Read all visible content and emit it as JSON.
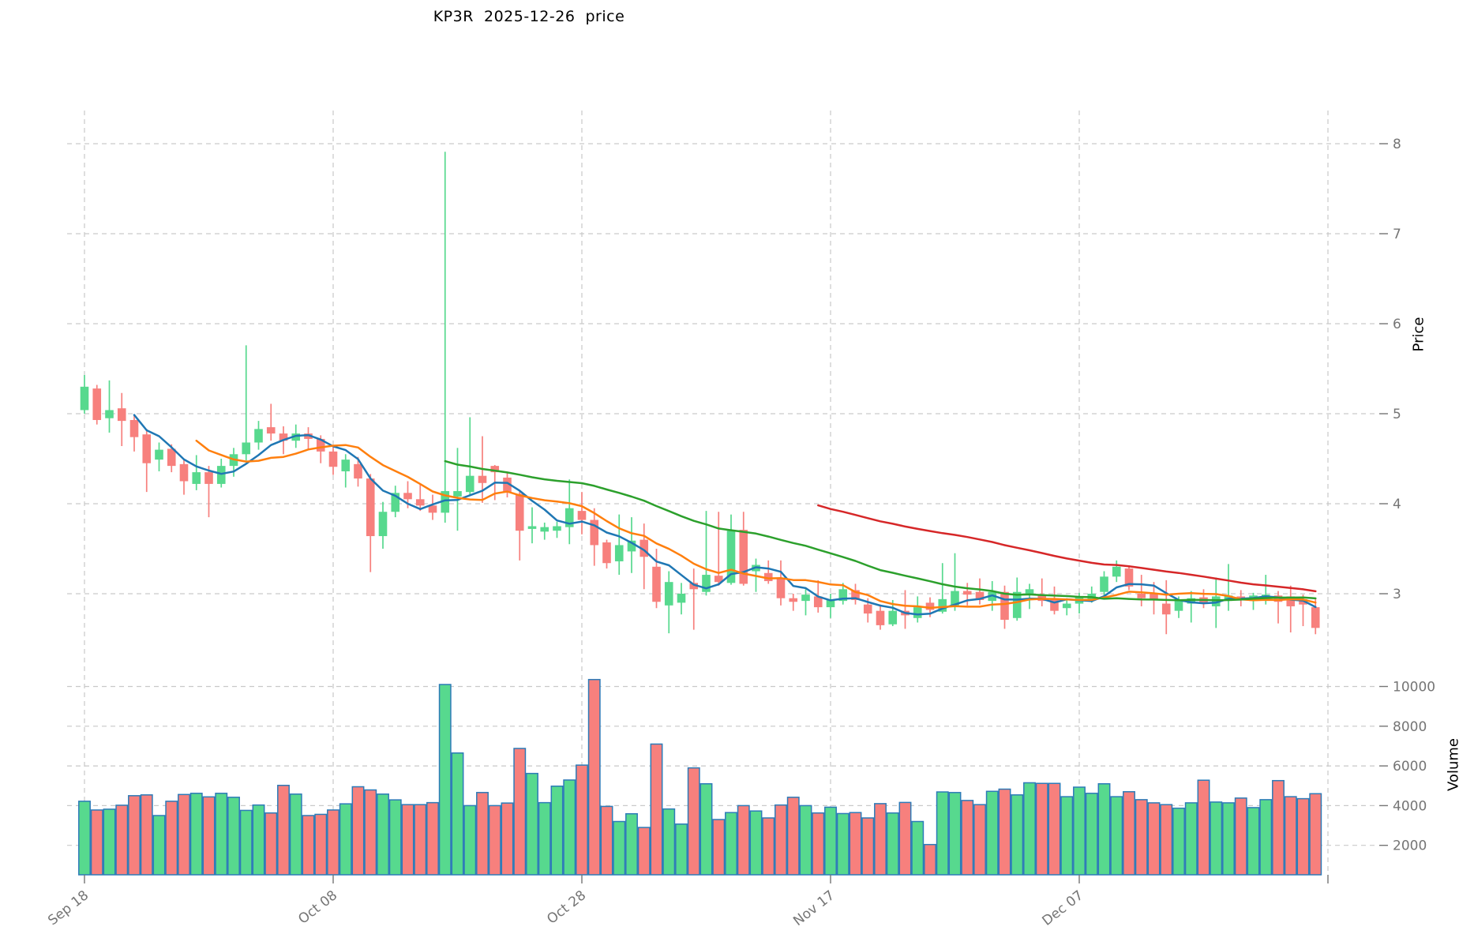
{
  "title": "KP3R  2025-12-26  price",
  "price_axis": {
    "label": "Price",
    "ticks": [
      8,
      7,
      6,
      5,
      4,
      3
    ]
  },
  "volume_axis": {
    "label": "Volume",
    "ticks": [
      10000,
      8000,
      6000,
      4000,
      2000
    ]
  },
  "x_axis": {
    "ticks": [
      {
        "index": 0,
        "label": "Sep 18"
      },
      {
        "index": 20,
        "label": "Oct 08"
      },
      {
        "index": 40,
        "label": "Oct 28"
      },
      {
        "index": 60,
        "label": "Nov 17"
      },
      {
        "index": 80,
        "label": "Dec 07"
      },
      {
        "index": 100,
        "label": ""
      }
    ]
  },
  "colors": {
    "up": "#57d98e",
    "down": "#f7807d",
    "volume_edge": "#2d7bb8",
    "grid": "#c9c9c9",
    "tick_label": "#757575",
    "ma_blue": "#1f77b4",
    "ma_orange": "#ff7f0e",
    "ma_green": "#2ca02c",
    "ma_red": "#d62728",
    "title_text": "#000000"
  },
  "chart_data": {
    "type": "candlestick",
    "symbol": "KP3R",
    "as_of": "2025-12-26",
    "title": "KP3R  2025-12-26  price",
    "ylabel_price": "Price",
    "ylabel_volume": "Volume",
    "price_ylim": [
      2.4,
      8.4
    ],
    "volume_ticks": [
      2000,
      4000,
      6000,
      8000,
      10000
    ],
    "grid": "dashed",
    "moving_averages": [
      {
        "name": "MA5",
        "period": 5,
        "color": "#1f77b4"
      },
      {
        "name": "MA10",
        "period": 10,
        "color": "#ff7f0e"
      },
      {
        "name": "MA30",
        "period": 30,
        "color": "#2ca02c"
      },
      {
        "name": "MA60",
        "period": 60,
        "color": "#d62728"
      }
    ],
    "dates": [
      "2025-09-18",
      "2025-09-19",
      "2025-09-20",
      "2025-09-21",
      "2025-09-22",
      "2025-09-23",
      "2025-09-24",
      "2025-09-25",
      "2025-09-26",
      "2025-09-27",
      "2025-09-28",
      "2025-09-29",
      "2025-09-30",
      "2025-10-01",
      "2025-10-02",
      "2025-10-03",
      "2025-10-04",
      "2025-10-05",
      "2025-10-06",
      "2025-10-07",
      "2025-10-08",
      "2025-10-09",
      "2025-10-10",
      "2025-10-11",
      "2025-10-12",
      "2025-10-13",
      "2025-10-14",
      "2025-10-15",
      "2025-10-16",
      "2025-10-17",
      "2025-10-18",
      "2025-10-19",
      "2025-10-20",
      "2025-10-21",
      "2025-10-22",
      "2025-10-23",
      "2025-10-24",
      "2025-10-25",
      "2025-10-26",
      "2025-10-27",
      "2025-10-28",
      "2025-10-29",
      "2025-10-30",
      "2025-10-31",
      "2025-11-01",
      "2025-11-02",
      "2025-11-03",
      "2025-11-04",
      "2025-11-05",
      "2025-11-06",
      "2025-11-07",
      "2025-11-08",
      "2025-11-09",
      "2025-11-10",
      "2025-11-11",
      "2025-11-12",
      "2025-11-13",
      "2025-11-14",
      "2025-11-15",
      "2025-11-16",
      "2025-11-17",
      "2025-11-18",
      "2025-11-19",
      "2025-11-20",
      "2025-11-21",
      "2025-11-22",
      "2025-11-23",
      "2025-11-24",
      "2025-11-25",
      "2025-11-26",
      "2025-11-27",
      "2025-11-28",
      "2025-11-29",
      "2025-11-30",
      "2025-12-01",
      "2025-12-02",
      "2025-12-03",
      "2025-12-04",
      "2025-12-05",
      "2025-12-06",
      "2025-12-07",
      "2025-12-08",
      "2025-12-09",
      "2025-12-10",
      "2025-12-11",
      "2025-12-12",
      "2025-12-13",
      "2025-12-14",
      "2025-12-15",
      "2025-12-16",
      "2025-12-17",
      "2025-12-18",
      "2025-12-19",
      "2025-12-20",
      "2025-12-21",
      "2025-12-22",
      "2025-12-23",
      "2025-12-24",
      "2025-12-25",
      "2025-12-26"
    ],
    "ohlcv": [
      [
        5.04,
        5.43,
        5.0,
        5.3,
        4220
      ],
      [
        5.28,
        5.32,
        4.88,
        4.93,
        3780
      ],
      [
        4.95,
        5.37,
        4.79,
        5.04,
        3820
      ],
      [
        5.06,
        5.23,
        4.64,
        4.92,
        4020
      ],
      [
        4.93,
        4.98,
        4.58,
        4.74,
        4500
      ],
      [
        4.77,
        4.83,
        4.13,
        4.45,
        4540
      ],
      [
        4.49,
        4.68,
        4.36,
        4.6,
        3500
      ],
      [
        4.61,
        4.66,
        4.35,
        4.42,
        4220
      ],
      [
        4.44,
        4.5,
        4.1,
        4.25,
        4560
      ],
      [
        4.22,
        4.54,
        4.15,
        4.35,
        4620
      ],
      [
        4.35,
        4.42,
        3.85,
        4.22,
        4440
      ],
      [
        4.22,
        4.5,
        4.18,
        4.42,
        4620
      ],
      [
        4.42,
        4.62,
        4.3,
        4.55,
        4420
      ],
      [
        4.55,
        5.76,
        4.48,
        4.68,
        3760
      ],
      [
        4.68,
        4.92,
        4.6,
        4.83,
        4030
      ],
      [
        4.85,
        5.11,
        4.7,
        4.78,
        3630
      ],
      [
        4.78,
        4.86,
        4.55,
        4.7,
        5020
      ],
      [
        4.7,
        4.88,
        4.62,
        4.78,
        4580
      ],
      [
        4.78,
        4.85,
        4.6,
        4.72,
        3500
      ],
      [
        4.72,
        4.76,
        4.45,
        4.58,
        3560
      ],
      [
        4.58,
        4.63,
        4.32,
        4.41,
        3780
      ],
      [
        4.36,
        4.55,
        4.18,
        4.49,
        4090
      ],
      [
        4.44,
        4.52,
        4.19,
        4.28,
        4950
      ],
      [
        4.28,
        4.33,
        3.24,
        3.64,
        4790
      ],
      [
        3.64,
        4.02,
        3.5,
        3.91,
        4580
      ],
      [
        3.91,
        4.2,
        3.85,
        4.12,
        4290
      ],
      [
        4.12,
        4.25,
        3.95,
        4.05,
        4050
      ],
      [
        4.05,
        4.22,
        3.92,
        3.98,
        4050
      ],
      [
        3.98,
        4.1,
        3.82,
        3.9,
        4150
      ],
      [
        3.9,
        7.91,
        3.79,
        4.14,
        10100
      ],
      [
        4.08,
        4.62,
        3.7,
        4.14,
        6650
      ],
      [
        4.13,
        4.96,
        4.09,
        4.31,
        4000
      ],
      [
        4.31,
        4.75,
        4.01,
        4.23,
        4660
      ],
      [
        4.42,
        4.43,
        4.04,
        4.35,
        4000
      ],
      [
        4.29,
        4.35,
        4.07,
        4.13,
        4130
      ],
      [
        4.11,
        4.15,
        3.37,
        3.7,
        6880
      ],
      [
        3.72,
        3.96,
        3.56,
        3.75,
        5620
      ],
      [
        3.69,
        3.79,
        3.6,
        3.74,
        4150
      ],
      [
        3.7,
        3.8,
        3.62,
        3.75,
        4980
      ],
      [
        3.74,
        4.27,
        3.55,
        3.95,
        5290
      ],
      [
        3.92,
        4.13,
        3.66,
        3.82,
        6040
      ],
      [
        3.82,
        3.95,
        3.31,
        3.54,
        10350
      ],
      [
        3.57,
        3.6,
        3.28,
        3.34,
        3960
      ],
      [
        3.36,
        3.88,
        3.21,
        3.54,
        3200
      ],
      [
        3.47,
        3.85,
        3.23,
        3.59,
        3590
      ],
      [
        3.6,
        3.78,
        3.05,
        3.41,
        2900
      ],
      [
        3.3,
        3.5,
        2.84,
        2.91,
        7100
      ],
      [
        2.87,
        3.25,
        2.56,
        3.13,
        3830
      ],
      [
        2.9,
        3.12,
        2.77,
        3.0,
        3070
      ],
      [
        3.12,
        3.28,
        2.6,
        3.05,
        5900
      ],
      [
        3.02,
        3.92,
        2.98,
        3.21,
        5100
      ],
      [
        3.2,
        3.91,
        3.09,
        3.13,
        3300
      ],
      [
        3.12,
        3.88,
        3.1,
        3.7,
        3650
      ],
      [
        3.71,
        3.91,
        3.09,
        3.11,
        4000
      ],
      [
        3.25,
        3.39,
        3.02,
        3.32,
        3730
      ],
      [
        3.23,
        3.37,
        3.11,
        3.14,
        3380
      ],
      [
        3.18,
        3.37,
        2.87,
        2.95,
        4030
      ],
      [
        2.95,
        3.0,
        2.81,
        2.91,
        4420
      ],
      [
        2.92,
        3.05,
        2.76,
        2.99,
        4000
      ],
      [
        2.97,
        3.15,
        2.79,
        2.85,
        3630
      ],
      [
        2.85,
        3.0,
        2.73,
        2.93,
        3920
      ],
      [
        2.92,
        3.12,
        2.88,
        3.05,
        3600
      ],
      [
        3.04,
        3.11,
        2.88,
        2.93,
        3650
      ],
      [
        2.88,
        2.95,
        2.68,
        2.78,
        3380
      ],
      [
        2.81,
        2.88,
        2.6,
        2.65,
        4100
      ],
      [
        2.66,
        2.93,
        2.64,
        2.81,
        3630
      ],
      [
        2.81,
        3.04,
        2.61,
        2.76,
        4160
      ],
      [
        2.73,
        2.97,
        2.68,
        2.85,
        3200
      ],
      [
        2.9,
        2.96,
        2.74,
        2.82,
        2040
      ],
      [
        2.8,
        3.34,
        2.78,
        2.94,
        4690
      ],
      [
        2.86,
        3.45,
        2.81,
        3.03,
        4660
      ],
      [
        3.03,
        3.12,
        2.87,
        2.99,
        4260
      ],
      [
        3.02,
        3.17,
        2.88,
        2.93,
        4050
      ],
      [
        2.92,
        3.14,
        2.81,
        3.02,
        4720
      ],
      [
        3.02,
        3.09,
        2.61,
        2.71,
        4830
      ],
      [
        2.73,
        3.18,
        2.7,
        3.02,
        4540
      ],
      [
        3.0,
        3.11,
        2.83,
        3.05,
        5150
      ],
      [
        2.99,
        3.17,
        2.86,
        2.92,
        5120
      ],
      [
        2.95,
        3.08,
        2.77,
        2.81,
        5120
      ],
      [
        2.84,
        2.95,
        2.76,
        2.89,
        4450
      ],
      [
        2.89,
        3.01,
        2.78,
        2.97,
        4930
      ],
      [
        2.94,
        3.08,
        2.9,
        3.0,
        4620
      ],
      [
        3.02,
        3.25,
        2.98,
        3.19,
        5100
      ],
      [
        3.19,
        3.37,
        3.13,
        3.3,
        4450
      ],
      [
        3.28,
        3.3,
        3.04,
        3.08,
        4700
      ],
      [
        3.0,
        3.21,
        2.86,
        2.95,
        4300
      ],
      [
        3.0,
        3.13,
        2.77,
        2.93,
        4140
      ],
      [
        2.89,
        3.15,
        2.55,
        2.77,
        4050
      ],
      [
        2.81,
        2.97,
        2.73,
        2.92,
        3870
      ],
      [
        2.89,
        3.03,
        2.68,
        2.95,
        4140
      ],
      [
        2.96,
        3.05,
        2.84,
        2.9,
        5280
      ],
      [
        2.86,
        3.18,
        2.62,
        2.97,
        4180
      ],
      [
        2.92,
        3.33,
        2.81,
        2.98,
        4140
      ],
      [
        2.97,
        3.04,
        2.86,
        2.93,
        4380
      ],
      [
        2.92,
        3.01,
        2.82,
        2.98,
        3900
      ],
      [
        2.94,
        3.21,
        2.88,
        2.99,
        4300
      ],
      [
        2.98,
        3.03,
        2.67,
        2.91,
        5260
      ],
      [
        2.97,
        3.09,
        2.57,
        2.86,
        4450
      ],
      [
        2.94,
        2.99,
        2.64,
        2.88,
        4350
      ],
      [
        2.85,
        2.95,
        2.55,
        2.62,
        4600
      ]
    ]
  }
}
